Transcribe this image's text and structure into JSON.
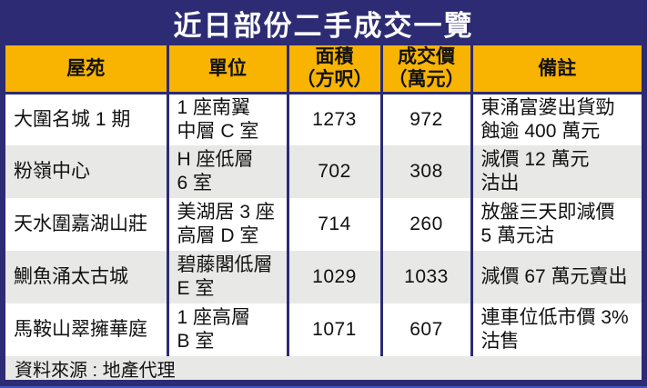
{
  "title": "近日部份二手成交一覽",
  "colors": {
    "navy": "#2c2b73",
    "yellow": "#f8b400",
    "row-alt": "#e8e8e7",
    "row": "#ffffff",
    "accent": "#4053c0",
    "ink": "#111111"
  },
  "header": {
    "estate": "屋苑",
    "unit": "單位",
    "area": "面積\n（方呎）",
    "price": "成交價\n（萬元）",
    "remark": "備註"
  },
  "rows": [
    {
      "estate": "大圍名城 1 期",
      "unit": "1 座南翼\n中層 C 室",
      "area": "1273",
      "price": "972",
      "remark": "東涌富婆出貨勁\n蝕逾 400 萬元"
    },
    {
      "estate": "粉嶺中心",
      "unit": "H 座低層\n6 室",
      "area": "702",
      "price": "308",
      "remark": "減價 12 萬元\n沽出"
    },
    {
      "estate": "天水圍嘉湖山莊",
      "unit": "美湖居 3 座\n高層 D 室",
      "area": "714",
      "price": "260",
      "remark": "放盤三天即減價\n5 萬元沽"
    },
    {
      "estate": "鰂魚涌太古城",
      "unit": "碧藤閣低層\nE 室",
      "area": "1029",
      "price": "1033",
      "remark": "減價 67 萬元賣出"
    },
    {
      "estate": "馬鞍山翠擁華庭",
      "unit": "1 座高層\nB 室",
      "area": "1071",
      "price": "607",
      "remark": "連車位低市價 3%\n沽售"
    }
  ],
  "footer": {
    "source": "資料來源 : 地產代理"
  },
  "chart_data": {
    "type": "table",
    "title": "近日部份二手成交一覽",
    "columns": [
      "屋苑",
      "單位",
      "面積（方呎）",
      "成交價（萬元）",
      "備註"
    ],
    "rows": [
      [
        "大圍名城 1 期",
        "1 座南翼中層 C 室",
        1273,
        972,
        "東涌富婆出貨勁蝕逾 400 萬元"
      ],
      [
        "粉嶺中心",
        "H 座低層 6 室",
        702,
        308,
        "減價 12 萬元沽出"
      ],
      [
        "天水圍嘉湖山莊",
        "美湖居 3 座高層 D 室",
        714,
        260,
        "放盤三天即減價 5 萬元沽"
      ],
      [
        "鰂魚涌太古城",
        "碧藤閣低層 E 室",
        1029,
        1033,
        "減價 67 萬元賣出"
      ],
      [
        "馬鞍山翠擁華庭",
        "1 座高層 B 室",
        1071,
        607,
        "連車位低市價 3% 沽售"
      ]
    ],
    "source_note": "資料來源 : 地產代理"
  }
}
